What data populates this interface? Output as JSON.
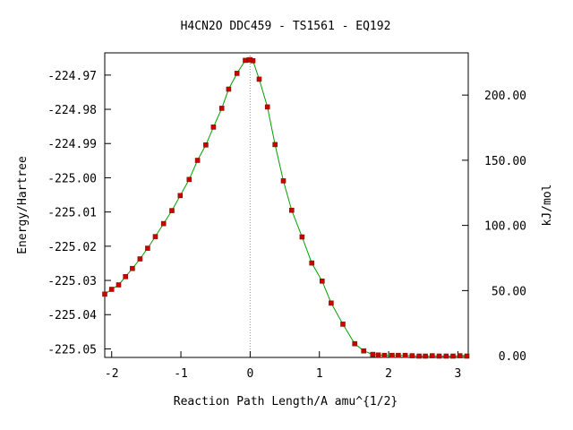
{
  "chart_data": {
    "type": "line",
    "title": "H4CN2O   DDC459 - TS1561 - EQ192",
    "xlabel": "Reaction Path Length/A amu^{1/2}",
    "ylabel": "Energy/Hartree",
    "y2label": "kJ/mol",
    "xlim": [
      -2.1,
      3.15
    ],
    "ylim": [
      -225.0525,
      -224.9635
    ],
    "y2lim": [
      -1.3,
      232.4
    ],
    "grid": false,
    "xticks": [
      {
        "value": -2,
        "label": "-2"
      },
      {
        "value": -1,
        "label": "-1"
      },
      {
        "value": 0,
        "label": "0"
      },
      {
        "value": 1,
        "label": "1"
      },
      {
        "value": 2,
        "label": "2"
      },
      {
        "value": 3,
        "label": "3"
      }
    ],
    "yticks": [
      {
        "value": -224.97,
        "label": "-224.97"
      },
      {
        "value": -224.98,
        "label": "-224.98"
      },
      {
        "value": -224.99,
        "label": "-224.99"
      },
      {
        "value": -225.0,
        "label": "-225.00"
      },
      {
        "value": -225.01,
        "label": "-225.01"
      },
      {
        "value": -225.02,
        "label": "-225.02"
      },
      {
        "value": -225.03,
        "label": "-225.03"
      },
      {
        "value": -225.04,
        "label": "-225.04"
      },
      {
        "value": -225.05,
        "label": "-225.05"
      }
    ],
    "y2ticks": [
      {
        "value": 0,
        "label": "0.00"
      },
      {
        "value": 50,
        "label": "50.00"
      },
      {
        "value": 100,
        "label": "100.00"
      },
      {
        "value": 150,
        "label": "150.00"
      },
      {
        "value": 200,
        "label": "200.00"
      }
    ],
    "ts_marker_x": 0,
    "colors": {
      "curve": "#00a000",
      "points": "#cc0000",
      "point_edge": "#7a1a00",
      "axis": "#000000",
      "ts_line": "#999999"
    },
    "series": [
      {
        "points": [
          [
            -2.1,
            -225.034
          ],
          [
            -2.0,
            -225.0326
          ],
          [
            -1.9,
            -225.0313
          ],
          [
            -1.8,
            -225.0289
          ],
          [
            -1.7,
            -225.0265
          ],
          [
            -1.59,
            -225.0237
          ],
          [
            -1.48,
            -225.0206
          ],
          [
            -1.37,
            -225.0172
          ],
          [
            -1.25,
            -225.0134
          ],
          [
            -1.13,
            -225.0096
          ],
          [
            -1.01,
            -225.0052
          ],
          [
            -0.88,
            -225.0005
          ],
          [
            -0.76,
            -224.9949
          ],
          [
            -0.64,
            -224.9904
          ],
          [
            -0.53,
            -224.9852
          ],
          [
            -0.41,
            -224.9797
          ],
          [
            -0.31,
            -224.9741
          ],
          [
            -0.19,
            -224.9695
          ],
          [
            -0.07,
            -224.9657
          ],
          [
            -0.02,
            -224.9656
          ],
          [
            0.0,
            -224.9655
          ],
          [
            0.04,
            -224.9658
          ],
          [
            0.13,
            -224.9712
          ],
          [
            0.25,
            -224.9793
          ],
          [
            0.36,
            -224.9903
          ],
          [
            0.48,
            -225.0009
          ],
          [
            0.6,
            -225.0095
          ],
          [
            0.75,
            -225.0173
          ],
          [
            0.89,
            -225.0249
          ],
          [
            1.04,
            -225.0302
          ],
          [
            1.17,
            -225.0366
          ],
          [
            1.34,
            -225.0428
          ],
          [
            1.51,
            -225.0485
          ],
          [
            1.64,
            -225.0506
          ],
          [
            1.77,
            -225.0516
          ],
          [
            1.85,
            -225.0518
          ],
          [
            1.94,
            -225.0519
          ],
          [
            2.05,
            -225.0519
          ],
          [
            2.14,
            -225.0519
          ],
          [
            2.24,
            -225.0519
          ],
          [
            2.34,
            -225.052
          ],
          [
            2.44,
            -225.0521
          ],
          [
            2.53,
            -225.0521
          ],
          [
            2.63,
            -225.052
          ],
          [
            2.73,
            -225.0521
          ],
          [
            2.83,
            -225.0521
          ],
          [
            2.93,
            -225.0521
          ],
          [
            3.03,
            -225.052
          ],
          [
            3.13,
            -225.0521
          ]
        ]
      }
    ]
  }
}
